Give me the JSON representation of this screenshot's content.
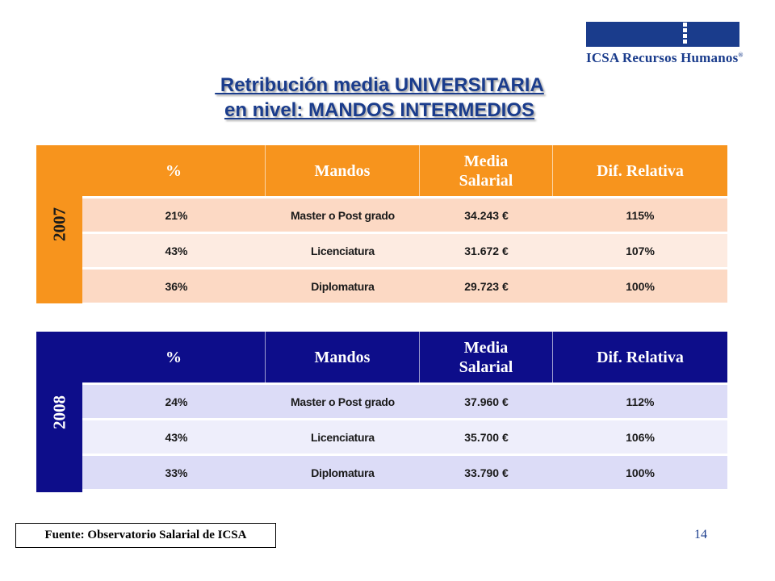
{
  "logo": {
    "text": "ICSA Recursos Humanos",
    "mark": "®"
  },
  "title": {
    "line1": " Retribución media UNIVERSITARIA",
    "line2": "en nivel: MANDOS INTERMEDIOS"
  },
  "colors": {
    "orange": "#f7941d",
    "navy": "#0d0d8a",
    "brand": "#1a3c8c"
  },
  "tables": {
    "t2007": {
      "year": "2007",
      "headers": {
        "pct": "%",
        "mandos": "Mandos",
        "media": "Media Salarial",
        "dif": "Dif. Relativa"
      },
      "rows": [
        {
          "pct": "21%",
          "mandos": "Master o Post grado",
          "media": "34.243 €",
          "dif": "115%"
        },
        {
          "pct": "43%",
          "mandos": "Licenciatura",
          "media": "31.672 €",
          "dif": "107%"
        },
        {
          "pct": "36%",
          "mandos": "Diplomatura",
          "media": "29.723 €",
          "dif": "100%"
        }
      ]
    },
    "t2008": {
      "year": "2008",
      "headers": {
        "pct": "%",
        "mandos": "Mandos",
        "media": "Media Salarial",
        "dif": "Dif. Relativa"
      },
      "rows": [
        {
          "pct": "24%",
          "mandos": "Master o Post grado",
          "media": "37.960 €",
          "dif": "112%"
        },
        {
          "pct": "43%",
          "mandos": "Licenciatura",
          "media": "35.700 €",
          "dif": "106%"
        },
        {
          "pct": "33%",
          "mandos": "Diplomatura",
          "media": "33.790 €",
          "dif": "100%"
        }
      ]
    }
  },
  "footer": {
    "source": "Fuente: Observatorio Salarial de ICSA",
    "page": "14"
  }
}
